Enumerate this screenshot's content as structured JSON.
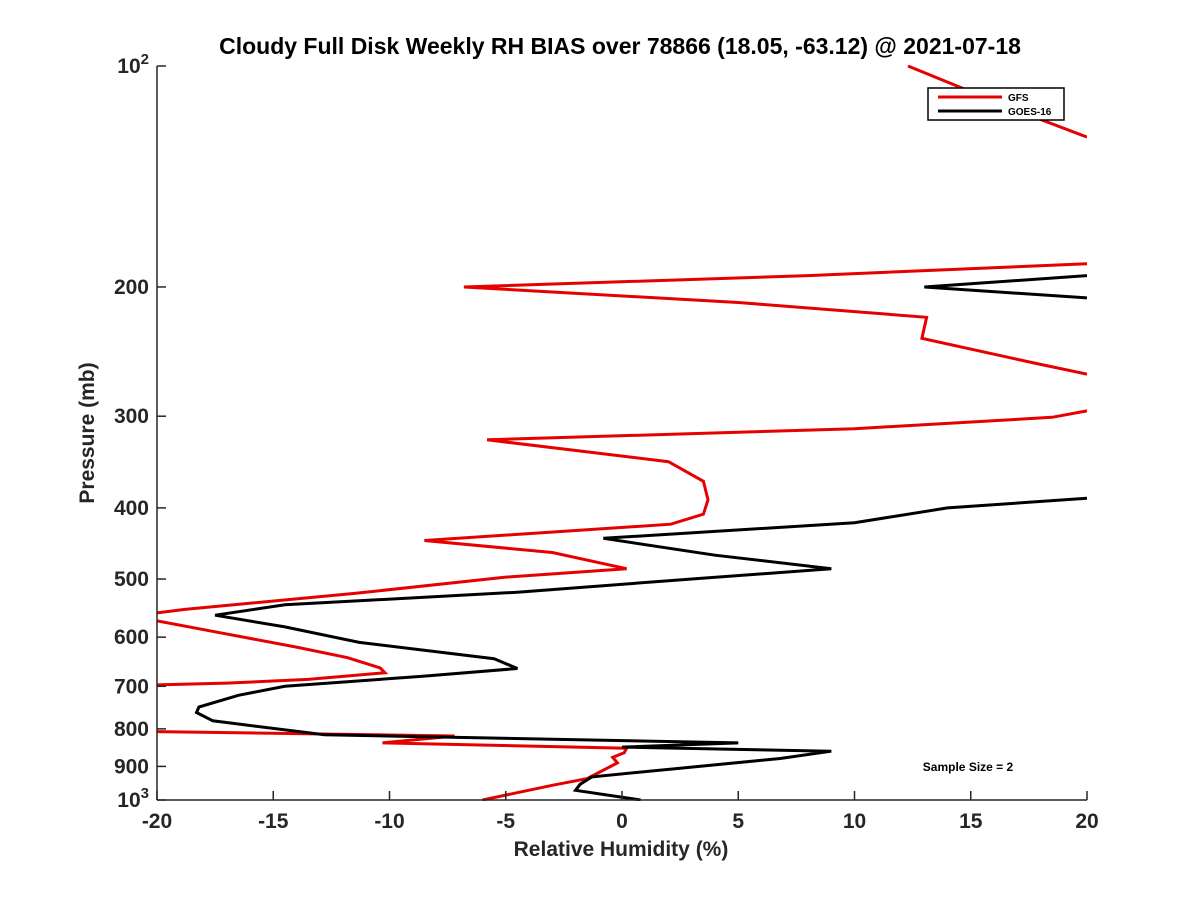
{
  "chart_data": {
    "type": "line",
    "title": "Cloudy Full Disk Weekly RH BIAS over 78866 (18.05, -63.12) @ 2021-07-18",
    "xlabel": "Relative Humidity (%)",
    "ylabel": "Pressure (mb)",
    "xlim": [
      -20,
      20
    ],
    "ylim": [
      100,
      1000
    ],
    "yscale": "log",
    "y_reversed": true,
    "xticks": [
      {
        "value": -20,
        "label": "-20"
      },
      {
        "value": -15,
        "label": "-15"
      },
      {
        "value": -10,
        "label": "-10"
      },
      {
        "value": -5,
        "label": "-5"
      },
      {
        "value": 0,
        "label": "0"
      },
      {
        "value": 5,
        "label": "5"
      },
      {
        "value": 10,
        "label": "10"
      },
      {
        "value": 15,
        "label": "15"
      },
      {
        "value": 20,
        "label": "20"
      }
    ],
    "yticks": [
      {
        "value": 100,
        "label": "10",
        "sup": "2"
      },
      {
        "value": 200,
        "label": "200"
      },
      {
        "value": 300,
        "label": "300"
      },
      {
        "value": 400,
        "label": "400"
      },
      {
        "value": 500,
        "label": "500"
      },
      {
        "value": 600,
        "label": "600"
      },
      {
        "value": 700,
        "label": "700"
      },
      {
        "value": 800,
        "label": "800"
      },
      {
        "value": 900,
        "label": "900"
      },
      {
        "value": 1000,
        "label": "10",
        "sup": "3"
      }
    ],
    "legend_position": "top-right",
    "annotation": "Sample Size = 2",
    "series": [
      {
        "name": "GFS",
        "color": "#e60000",
        "points": [
          [
            12.3,
            100
          ],
          [
            17,
            115
          ],
          [
            20,
            125
          ],
          [
            null,
            null
          ],
          [
            20,
            186
          ],
          [
            8,
            193
          ],
          [
            -6.8,
            200
          ],
          [
            5,
            210
          ],
          [
            13.1,
            220
          ],
          [
            12.9,
            235
          ],
          [
            18,
            255
          ],
          [
            20,
            263
          ],
          [
            null,
            null
          ],
          [
            20,
            295
          ],
          [
            18.5,
            301
          ],
          [
            10,
            312
          ],
          [
            -5.8,
            323
          ],
          [
            2,
            346
          ],
          [
            3.5,
            368
          ],
          [
            3.7,
            390
          ],
          [
            3.5,
            408
          ],
          [
            2.1,
            421
          ],
          [
            -8.5,
            443
          ],
          [
            -3,
            460
          ],
          [
            0.2,
            484
          ],
          [
            -5,
            497
          ],
          [
            -11.5,
            523
          ],
          [
            -18.8,
            550
          ],
          [
            -20,
            556
          ],
          [
            null,
            null
          ],
          [
            -20,
            570
          ],
          [
            -17.5,
            590
          ],
          [
            -14,
            619
          ],
          [
            -11.8,
            640
          ],
          [
            -10.4,
            661
          ],
          [
            -10.2,
            671
          ],
          [
            -13.5,
            685
          ],
          [
            -17,
            693
          ],
          [
            -20,
            697
          ],
          [
            null,
            null
          ],
          [
            -20,
            807
          ],
          [
            -14,
            812
          ],
          [
            -7.2,
            818
          ],
          [
            -10.3,
            836
          ],
          [
            0.2,
            850
          ],
          [
            0.1,
            862
          ],
          [
            -0.4,
            875
          ],
          [
            -0.2,
            890
          ],
          [
            -1.5,
            935
          ],
          [
            -3,
            955
          ],
          [
            -6,
            1000
          ]
        ]
      },
      {
        "name": "GOES-16",
        "color": "#000000",
        "points": [
          [
            20,
            193
          ],
          [
            13,
            200
          ],
          [
            20,
            207
          ],
          [
            null,
            null
          ],
          [
            20,
            388
          ],
          [
            14,
            400
          ],
          [
            10,
            419
          ],
          [
            -0.8,
            440
          ],
          [
            4,
            464
          ],
          [
            9,
            484
          ],
          [
            3,
            500
          ],
          [
            -4.5,
            521
          ],
          [
            -14.5,
            542
          ],
          [
            -17.5,
            560
          ],
          [
            -14.5,
            581
          ],
          [
            -11.3,
            610
          ],
          [
            -5.5,
            642
          ],
          [
            -4.5,
            662
          ],
          [
            -8.5,
            678
          ],
          [
            -14.5,
            700
          ],
          [
            -16.5,
            720
          ],
          [
            -18.2,
            747
          ],
          [
            -18.3,
            760
          ],
          [
            -17.6,
            780
          ],
          [
            -12.8,
            815
          ],
          [
            5,
            836
          ],
          [
            0,
            847
          ],
          [
            9,
            858
          ],
          [
            6.8,
            878
          ],
          [
            2.5,
            905
          ],
          [
            -1.3,
            930
          ],
          [
            -1.8,
            952
          ],
          [
            -2,
            970
          ],
          [
            0.8,
            1000
          ]
        ]
      }
    ]
  }
}
